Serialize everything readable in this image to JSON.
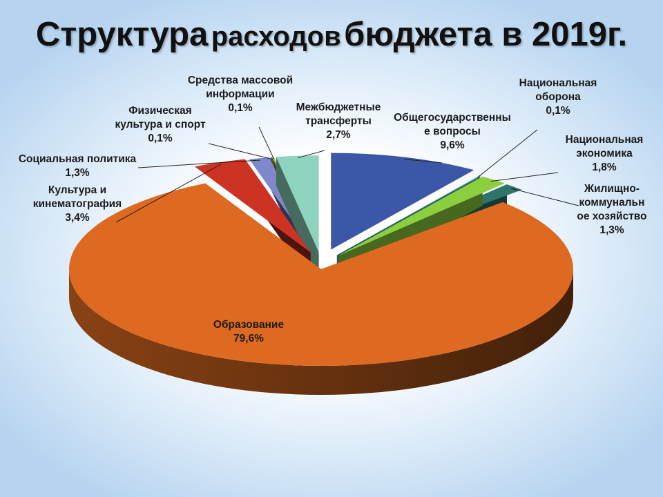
{
  "chart_data": {
    "type": "pie",
    "title_part1": "Структура",
    "title_part2": "расходов",
    "title_part3": "бюджета в 2019г.",
    "slices": [
      {
        "name": "Общегосударственные вопросы",
        "label_lines": [
          "Общегосударственны",
          "е вопросы"
        ],
        "value": 9.6,
        "value_label": "9,6%",
        "color": "#3c56a8"
      },
      {
        "name": "Национальная оборона",
        "label_lines": [
          "Национальная",
          "оборона"
        ],
        "value": 0.1,
        "value_label": "0,1%",
        "color": "#4aa3c0"
      },
      {
        "name": "Национальная экономика",
        "label_lines": [
          "Национальная",
          "экономика"
        ],
        "value": 1.8,
        "value_label": "1,8%",
        "color": "#8ccf3e"
      },
      {
        "name": "Жилищно-коммунальное хозяйство",
        "label_lines": [
          "Жилищно-",
          "коммунальн",
          "ое хозяйство"
        ],
        "value": 1.3,
        "value_label": "1,3%",
        "color": "#2e7468"
      },
      {
        "name": "Образование",
        "label_lines": [
          "Образование"
        ],
        "value": 79.6,
        "value_label": "79,6%",
        "color": "#dd6a20"
      },
      {
        "name": "Культура и кинематография",
        "label_lines": [
          "Культура и",
          "кинематография"
        ],
        "value": 3.4,
        "value_label": "3,4%",
        "color": "#cc3323"
      },
      {
        "name": "Социальная политика",
        "label_lines": [
          "Социальная политика"
        ],
        "value": 1.3,
        "value_label": "1,3%",
        "color": "#8088cc"
      },
      {
        "name": "Физическая культура и спорт",
        "label_lines": [
          "Физическая",
          "культура и спорт"
        ],
        "value": 0.1,
        "value_label": "0,1%",
        "color": "#5f7fb0"
      },
      {
        "name": "Средства массовой информации",
        "label_lines": [
          "Средства массовой",
          "информации"
        ],
        "value": 0.1,
        "value_label": "0,1%",
        "color": "#a0b84a"
      },
      {
        "name": "Межбюджетные трансферты",
        "label_lines": [
          "Межбюджетные",
          "трансферты"
        ],
        "value": 2.7,
        "value_label": "2,7%",
        "color": "#8ed3bd"
      }
    ]
  }
}
